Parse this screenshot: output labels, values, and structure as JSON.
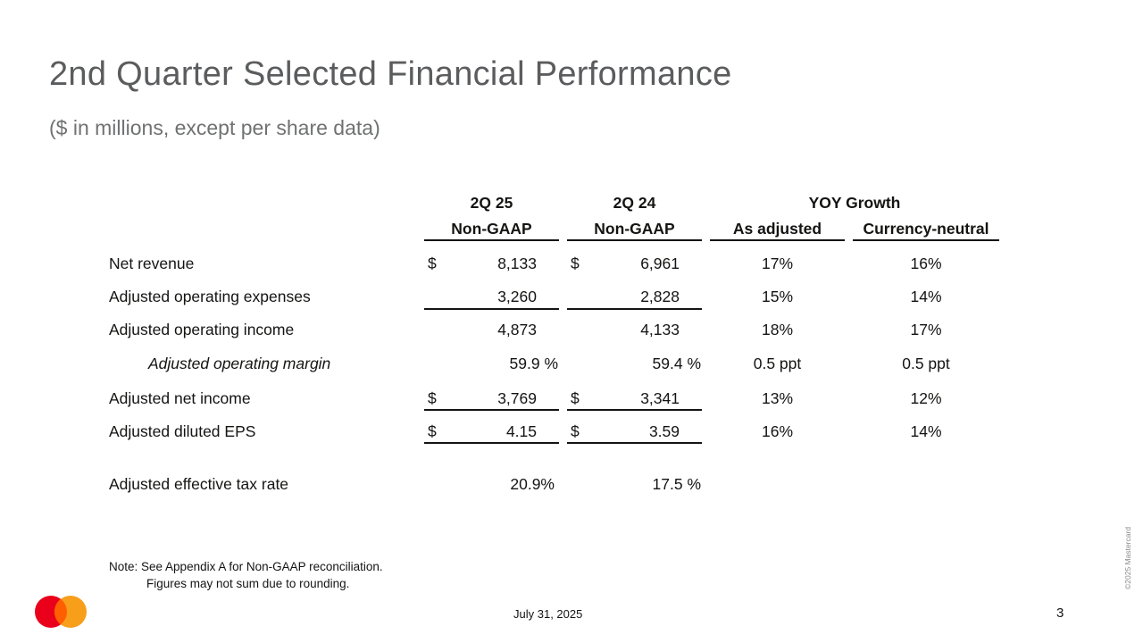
{
  "title": "2nd Quarter Selected Financial Performance",
  "subtitle": "($ in millions, except per share data)",
  "columns": {
    "col1_line1": "2Q 25",
    "col1_line2": "Non-GAAP",
    "col2_line1": "2Q 24",
    "col2_line2": "Non-GAAP",
    "yoy_group": "YOY Growth",
    "col3": "As adjusted",
    "col4": "Currency-neutral"
  },
  "currency_symbol": "$",
  "rows": [
    {
      "label": "Net revenue",
      "q25": "8,133",
      "q24": "6,961",
      "adj": "17%",
      "cn": "16%"
    },
    {
      "label": "Adjusted operating expenses",
      "q25": "3,260",
      "q24": "2,828",
      "adj": "15%",
      "cn": "14%"
    },
    {
      "label": "Adjusted operating income",
      "q25": "4,873",
      "q24": "4,133",
      "adj": "18%",
      "cn": "17%"
    },
    {
      "label": "Adjusted operating margin",
      "q25": "59.9 %",
      "q24": "59.4 %",
      "adj": "0.5 ppt",
      "cn": "0.5 ppt"
    },
    {
      "label": "Adjusted net income",
      "q25": "3,769",
      "q24": "3,341",
      "adj": "13%",
      "cn": "12%"
    },
    {
      "label": "Adjusted diluted EPS",
      "q25": "4.15",
      "q24": "3.59",
      "adj": "16%",
      "cn": "14%"
    },
    {
      "label": "Adjusted effective tax rate",
      "q25": "20.9%",
      "q24": "17.5 %",
      "adj": "",
      "cn": ""
    }
  ],
  "note": {
    "line1": "Note: See Appendix A for Non-GAAP reconciliation.",
    "line2": "Figures may not sum due to rounding."
  },
  "footer": {
    "date": "July 31, 2025",
    "page": "3",
    "copyright": "©2025 Mastercard"
  },
  "colors": {
    "logo_red": "#eb001b",
    "logo_orange": "#f79e1b",
    "logo_overlap": "#ff5f00",
    "title_gray": "#5b5c5e"
  },
  "icons": {
    "logo": "mastercard-logo-icon"
  }
}
